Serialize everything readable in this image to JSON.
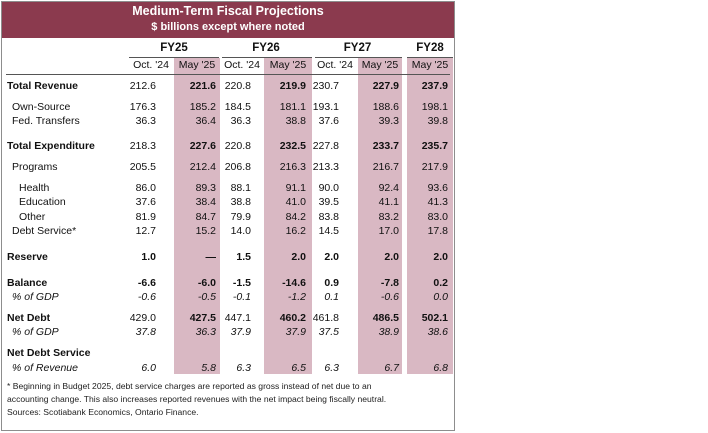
{
  "title": "Medium-Term Fiscal Projections",
  "subtitle": "$ billions except where noted",
  "fiscal_years": [
    "FY25",
    "FY26",
    "FY27",
    "FY28"
  ],
  "columns": [
    "Oct. '24",
    "May '25",
    "Oct. '24",
    "May '25",
    "Oct. '24",
    "May '25",
    "May '25"
  ],
  "rows": [
    {
      "label": "Total Revenue",
      "style": "bold",
      "indent": 0,
      "values": [
        "212.6",
        "221.6",
        "220.8",
        "219.9",
        "230.7",
        "227.9",
        "237.9"
      ]
    },
    {
      "label": "Own-Source",
      "style": "normal",
      "indent": 1,
      "values": [
        "176.3",
        "185.2",
        "184.5",
        "181.1",
        "193.1",
        "188.6",
        "198.1"
      ]
    },
    {
      "label": "Fed. Transfers",
      "style": "normal",
      "indent": 1,
      "values": [
        "36.3",
        "36.4",
        "36.3",
        "38.8",
        "37.6",
        "39.3",
        "39.8"
      ]
    },
    {
      "label": "Total Expenditure",
      "style": "bold",
      "indent": 0,
      "values": [
        "218.3",
        "227.6",
        "220.8",
        "232.5",
        "227.8",
        "233.7",
        "235.7"
      ]
    },
    {
      "label": "Programs",
      "style": "normal",
      "indent": 1,
      "values": [
        "205.5",
        "212.4",
        "206.8",
        "216.3",
        "213.3",
        "216.7",
        "217.9"
      ]
    },
    {
      "label": "Health",
      "style": "normal",
      "indent": 2,
      "values": [
        "86.0",
        "89.3",
        "88.1",
        "91.1",
        "90.0",
        "92.4",
        "93.6"
      ]
    },
    {
      "label": "Education",
      "style": "normal",
      "indent": 2,
      "values": [
        "37.6",
        "38.4",
        "38.8",
        "41.0",
        "39.5",
        "41.1",
        "41.3"
      ]
    },
    {
      "label": "Other",
      "style": "normal",
      "indent": 2,
      "values": [
        "81.9",
        "84.7",
        "79.9",
        "84.2",
        "83.8",
        "83.2",
        "83.0"
      ]
    },
    {
      "label": "Debt Service*",
      "style": "normal",
      "indent": 1,
      "values": [
        "12.7",
        "15.2",
        "14.0",
        "16.2",
        "14.5",
        "17.0",
        "17.8"
      ]
    },
    {
      "label": "Reserve",
      "style": "bold",
      "indent": 0,
      "values": [
        "1.0",
        "—",
        "1.5",
        "2.0",
        "2.0",
        "2.0",
        "2.0"
      ]
    },
    {
      "label": "Balance",
      "style": "bold",
      "indent": 0,
      "values": [
        "-6.6",
        "-6.0",
        "-1.5",
        "-14.6",
        "0.9",
        "-7.8",
        "0.2"
      ]
    },
    {
      "label": "% of GDP",
      "style": "italic",
      "indent": 1,
      "values": [
        "-0.6",
        "-0.5",
        "-0.1",
        "-1.2",
        "0.1",
        "-0.6",
        "0.0"
      ]
    },
    {
      "label": "Net Debt",
      "style": "bold",
      "indent": 0,
      "values": [
        "429.0",
        "427.5",
        "447.1",
        "460.2",
        "461.8",
        "486.5",
        "502.1"
      ]
    },
    {
      "label": "% of GDP",
      "style": "italic",
      "indent": 1,
      "values": [
        "37.8",
        "36.3",
        "37.9",
        "37.9",
        "37.5",
        "38.9",
        "38.6"
      ]
    },
    {
      "label": "Net Debt Service",
      "style": "bold",
      "indent": 0,
      "values": [
        "",
        "",
        "",
        "",
        "",
        "",
        ""
      ]
    },
    {
      "label": "% of Revenue",
      "style": "italic",
      "indent": 1,
      "values": [
        "6.0",
        "5.8",
        "6.3",
        "6.5",
        "6.3",
        "6.7",
        "6.8"
      ]
    }
  ],
  "footnote": [
    "* Beginning in Budget 2025, debt service charges are reported as gross instead of net due to an",
    "accounting change. This also increases reported revenues with the net impact being fiscally neutral.",
    "Sources: Scotiabank Economics, Ontario Finance."
  ],
  "colors": {
    "header": "#8b3a4e",
    "highlight": "#d9b8c3"
  }
}
